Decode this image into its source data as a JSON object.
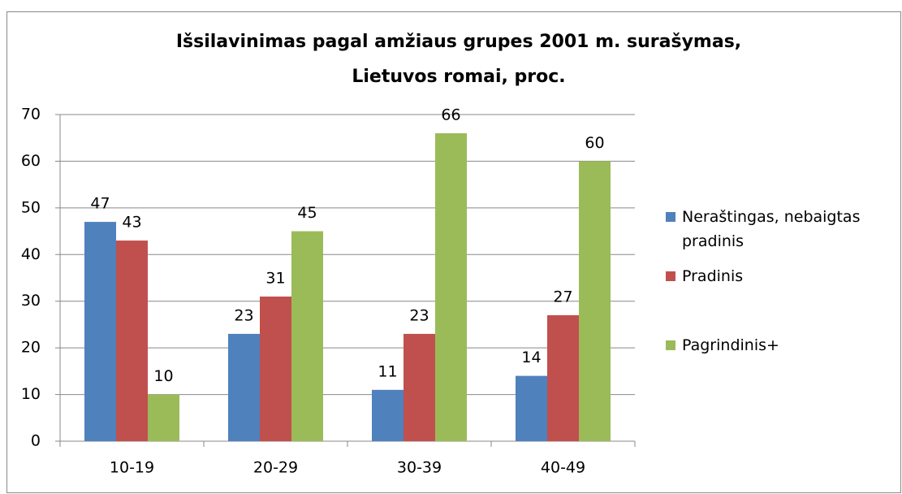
{
  "chart_data": {
    "type": "bar",
    "title": "Išsilavinimas pagal amžiaus grupes 2001 m. surašymas, Lietuvos romai, proc.",
    "categories": [
      "10-19",
      "20-29",
      "30-39",
      "40-49"
    ],
    "series": [
      {
        "name": "Neraštingas, nebaigtas pradinis",
        "color": "#4f81bd",
        "values": [
          47,
          23,
          11,
          14
        ]
      },
      {
        "name": "Pradinis",
        "color": "#c0504d",
        "values": [
          43,
          31,
          23,
          27
        ]
      },
      {
        "name": "Pagrindinis+",
        "color": "#9bbb59",
        "values": [
          10,
          45,
          66,
          60
        ]
      }
    ],
    "ylim": [
      0,
      70
    ],
    "yticks": [
      0,
      10,
      20,
      30,
      40,
      50,
      60,
      70
    ],
    "grid": true,
    "legend": "right"
  }
}
